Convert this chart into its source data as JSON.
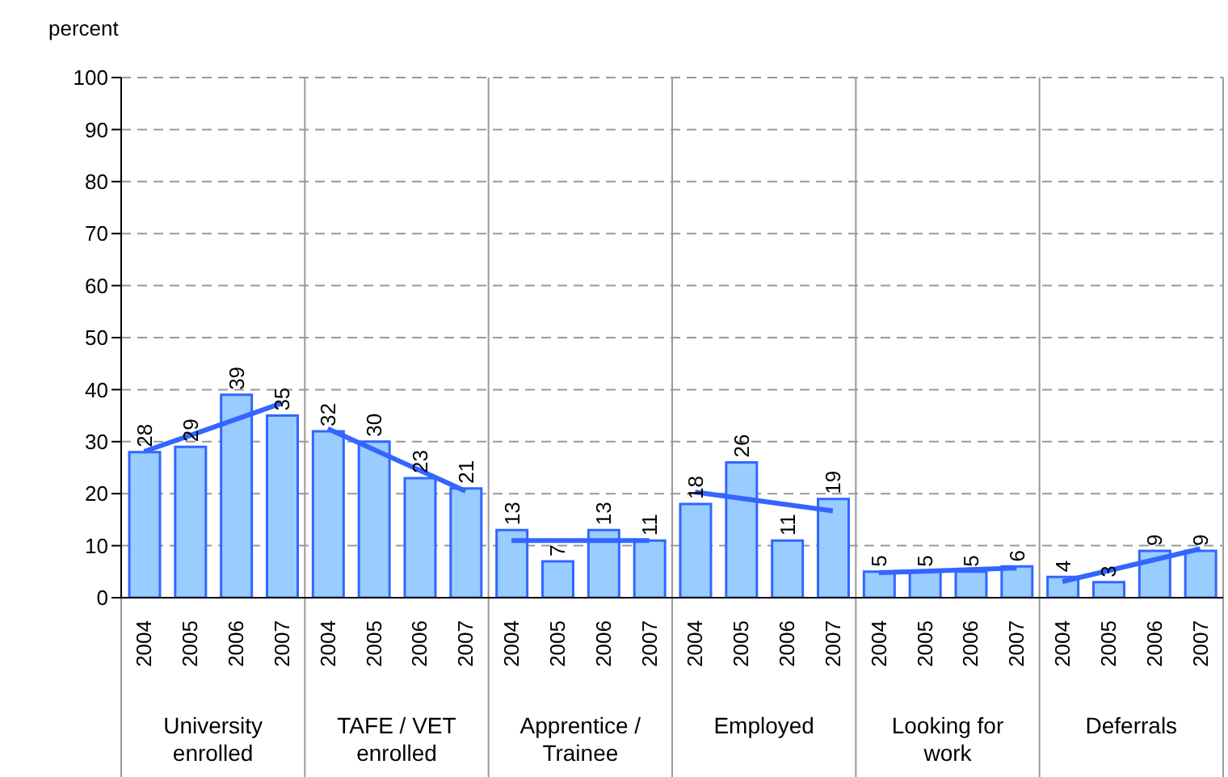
{
  "chart_data": {
    "type": "bar",
    "ylabel": "percent",
    "categories": [
      "2004",
      "2005",
      "2006",
      "2007",
      "2004",
      "2005",
      "2006",
      "2007",
      "2004",
      "2005",
      "2006",
      "2007",
      "2004",
      "2005",
      "2006",
      "2007",
      "2004",
      "2005",
      "2006",
      "2007",
      "2004",
      "2005",
      "2006",
      "2007"
    ],
    "annotations": [
      "University enrolled",
      "TAFE / VET enrolled",
      "Apprentice / Trainee",
      "Employed",
      "Looking for work",
      "Deferrals"
    ],
    "series": [
      {
        "color": "#99ccff",
        "values": [
          28,
          29,
          39,
          35,
          32,
          30,
          23,
          21,
          13,
          7,
          13,
          11,
          18,
          26,
          11,
          19,
          5,
          5,
          5,
          6,
          4,
          3,
          9,
          9
        ],
        "value_labels": [
          "28",
          "29",
          "39",
          "35",
          "32",
          "30",
          "23",
          "21",
          "13",
          "7",
          "13",
          "11",
          "18",
          "26",
          "11",
          "19",
          "5",
          "5",
          "5",
          "6",
          "4",
          "3",
          "9",
          "9"
        ]
      },
      {
        "type": "line",
        "color": "#3366ff",
        "values": [
          28.1,
          31.2,
          34.3,
          37.4,
          null,
          null,
          null,
          null,
          null,
          null,
          null,
          null,
          null,
          null,
          null,
          null,
          null,
          null,
          null,
          null,
          null,
          null,
          null,
          null
        ]
      },
      {
        "type": "line",
        "color": "#3366ff",
        "values": [
          null,
          null,
          null,
          null,
          32.5,
          28.5,
          24.5,
          20.5,
          null,
          null,
          null,
          null,
          null,
          null,
          null,
          null,
          null,
          null,
          null,
          null,
          null,
          null,
          null,
          null
        ]
      },
      {
        "type": "line",
        "color": "#3366ff",
        "values": [
          null,
          null,
          null,
          null,
          null,
          null,
          null,
          null,
          11,
          11,
          11,
          11,
          null,
          null,
          null,
          null,
          null,
          null,
          null,
          null,
          null,
          null,
          null,
          null
        ]
      },
      {
        "type": "line",
        "color": "#3366ff",
        "values": [
          null,
          null,
          null,
          null,
          null,
          null,
          null,
          null,
          null,
          null,
          null,
          null,
          20.3,
          19.1,
          17.9,
          16.7,
          null,
          null,
          null,
          null,
          null,
          null,
          null,
          null
        ]
      },
      {
        "type": "line",
        "color": "#3366ff",
        "values": [
          null,
          null,
          null,
          null,
          null,
          null,
          null,
          null,
          null,
          null,
          null,
          null,
          null,
          null,
          null,
          null,
          4.8,
          5.1,
          5.4,
          5.7,
          null,
          null,
          null,
          null
        ]
      },
      {
        "type": "line",
        "color": "#3366ff",
        "values": [
          null,
          null,
          null,
          null,
          null,
          null,
          null,
          null,
          null,
          null,
          null,
          null,
          null,
          null,
          null,
          null,
          null,
          null,
          null,
          null,
          3.1,
          5.2,
          7.3,
          9.4
        ]
      }
    ],
    "ylim": [
      0,
      100
    ],
    "yticks": [
      0,
      10,
      20,
      30,
      40,
      50,
      60,
      70,
      80,
      90,
      100
    ],
    "grid": "y",
    "marker": "none"
  }
}
